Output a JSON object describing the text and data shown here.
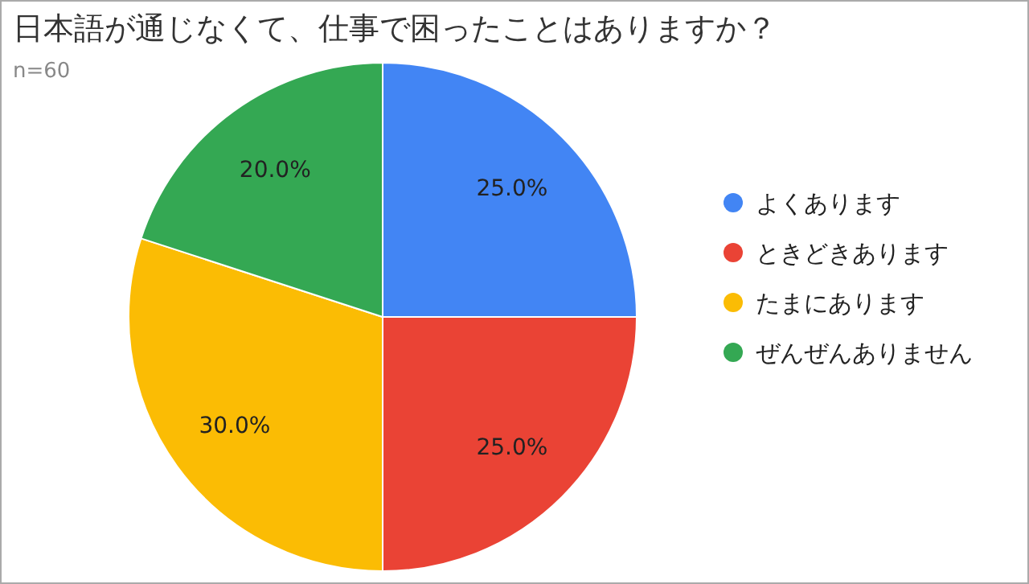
{
  "chart_data": {
    "type": "pie",
    "title": "日本語が通じなくて、仕事で困ったことはありますか？",
    "subtitle": "n=60",
    "categories": [
      "よくあります",
      "ときどきあります",
      "たまにあります",
      "ぜんぜんありません"
    ],
    "values": [
      25,
      25,
      30,
      20
    ],
    "colors": [
      "#4285f4",
      "#ea4335",
      "#fbbc04",
      "#34a853"
    ],
    "value_labels": [
      "25.0%",
      "25.0%",
      "30.0%",
      "20.0%"
    ],
    "legend": "right"
  }
}
